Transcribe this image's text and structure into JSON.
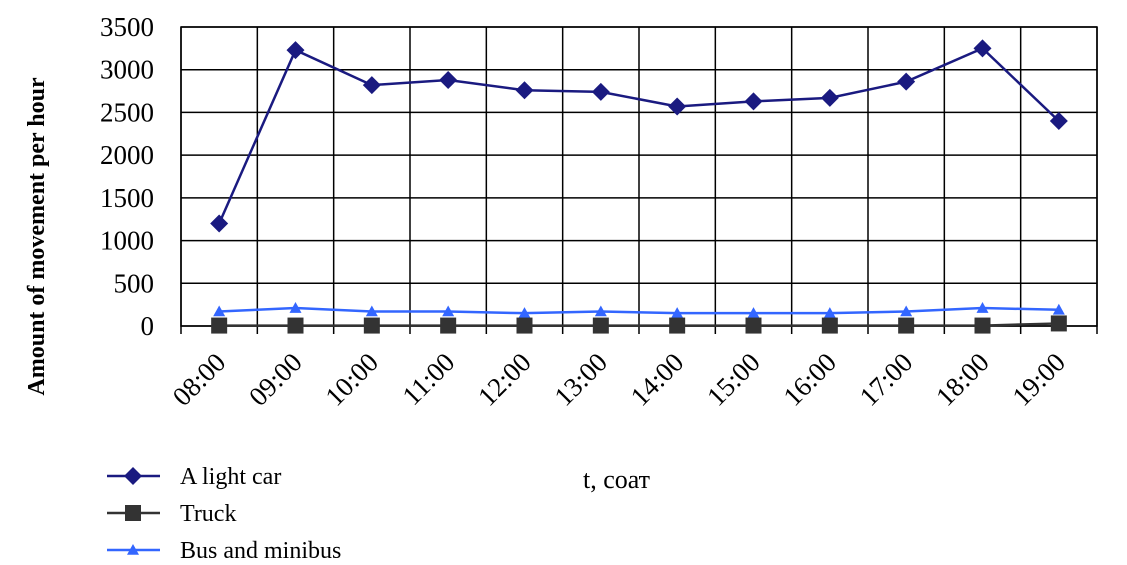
{
  "chart_data": {
    "type": "line",
    "categories": [
      "08:00",
      "09:00",
      "10:00",
      "11:00",
      "12:00",
      "13:00",
      "14:00",
      "15:00",
      "16:00",
      "17:00",
      "18:00",
      "19:00"
    ],
    "series": [
      {
        "name": "A light car",
        "values": [
          1200,
          3230,
          2820,
          2880,
          2760,
          2740,
          2570,
          2630,
          2670,
          2860,
          3250,
          2400
        ],
        "color": "#1a1a80",
        "marker": "diamond"
      },
      {
        "name": "Truck",
        "values": [
          5,
          5,
          5,
          5,
          5,
          5,
          5,
          5,
          5,
          5,
          5,
          30
        ],
        "color": "#333333",
        "marker": "square"
      },
      {
        "name": "Bus and minibus",
        "values": [
          170,
          210,
          170,
          170,
          150,
          170,
          150,
          150,
          150,
          170,
          210,
          190
        ],
        "color": "#3366ff",
        "marker": "triangle"
      }
    ],
    "xlabel": "t, соат",
    "ylabel": "Amount of movement per hour",
    "ylim": [
      0,
      3500
    ],
    "yticks": [
      0,
      500,
      1000,
      1500,
      2000,
      2500,
      3000,
      3500
    ],
    "grid": true,
    "legend_position": "bottom-left"
  }
}
